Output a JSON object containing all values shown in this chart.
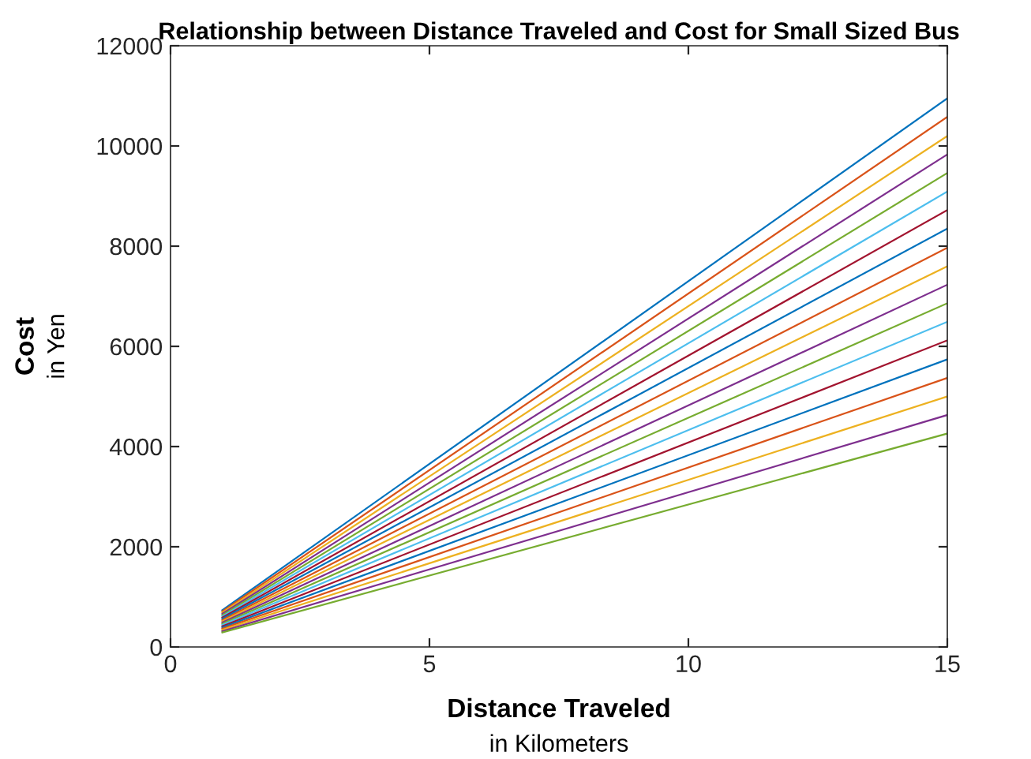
{
  "chart_data": {
    "type": "line",
    "title": "Relationship between Distance Traveled and Cost for Small Sized Bus",
    "xlabel": "Distance Traveled\nin Kilometers",
    "ylabel": "Cost\nin Yen",
    "x": [
      1,
      15
    ],
    "xlim": [
      0,
      15
    ],
    "xticks": [
      0,
      5,
      10,
      15
    ],
    "ylim": [
      0,
      12000
    ],
    "yticks": [
      0,
      2000,
      4000,
      6000,
      8000,
      10000,
      12000
    ],
    "grid": false,
    "legend": false,
    "marker": "none",
    "line_style": "solid",
    "series": [
      {
        "color": "#0072bd",
        "values": [
          735,
          10950
        ]
      },
      {
        "color": "#d95319",
        "values": [
          710,
          10580
        ]
      },
      {
        "color": "#edb120",
        "values": [
          686,
          10200
        ]
      },
      {
        "color": "#7e2f8e",
        "values": [
          661,
          9830
        ]
      },
      {
        "color": "#77ac30",
        "values": [
          636,
          9460
        ]
      },
      {
        "color": "#4dbeee",
        "values": [
          612,
          9090
        ]
      },
      {
        "color": "#a2142f",
        "values": [
          587,
          8720
        ]
      },
      {
        "color": "#0072bd",
        "values": [
          562,
          8350
        ]
      },
      {
        "color": "#d95319",
        "values": [
          537,
          7970
        ]
      },
      {
        "color": "#edb120",
        "values": [
          513,
          7600
        ]
      },
      {
        "color": "#7e2f8e",
        "values": [
          488,
          7230
        ]
      },
      {
        "color": "#77ac30",
        "values": [
          463,
          6860
        ]
      },
      {
        "color": "#4dbeee",
        "values": [
          439,
          6490
        ]
      },
      {
        "color": "#a2142f",
        "values": [
          414,
          6120
        ]
      },
      {
        "color": "#0072bd",
        "values": [
          389,
          5740
        ]
      },
      {
        "color": "#d95319",
        "values": [
          365,
          5370
        ]
      },
      {
        "color": "#edb120",
        "values": [
          340,
          5000
        ]
      },
      {
        "color": "#7e2f8e",
        "values": [
          315,
          4630
        ]
      },
      {
        "color": "#77ac30",
        "values": [
          290,
          4260
        ]
      }
    ]
  }
}
